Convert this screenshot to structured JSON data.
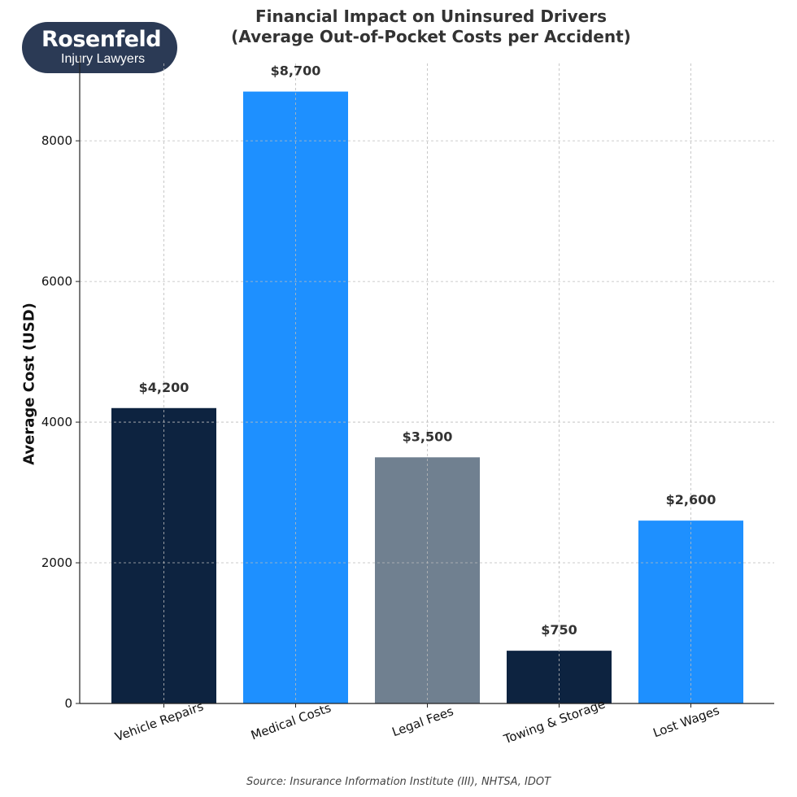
{
  "title_line1": "Financial Impact on Uninsured Drivers",
  "title_line2": "(Average Out-of-Pocket Costs per Accident)",
  "logo": {
    "brand": "Rosenfeld",
    "sub": "Injury Lawyers"
  },
  "source": "Source: Insurance Information Institute (III), NHTSA, IDOT",
  "chart_data": {
    "type": "bar",
    "categories": [
      "Vehicle Repairs",
      "Medical Costs",
      "Legal Fees",
      "Towing & Storage",
      "Lost Wages"
    ],
    "values": [
      4200,
      8700,
      3500,
      750,
      2600
    ],
    "data_labels": [
      "$4,200",
      "$8,700",
      "$3,500",
      "$750",
      "$2,600"
    ],
    "colors": [
      "#0d2340",
      "#1e90ff",
      "#708090",
      "#0d2340",
      "#1e90ff"
    ],
    "ylabel": "Average Cost (USD)",
    "yticks": [
      0,
      2000,
      4000,
      6000,
      8000
    ],
    "ylim": [
      0,
      9100
    ],
    "grid": true
  }
}
